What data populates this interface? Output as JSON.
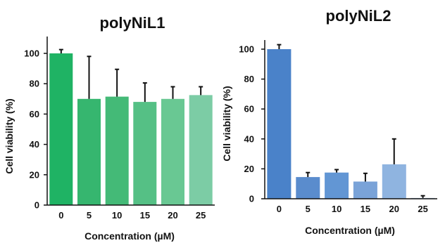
{
  "chart_data": [
    {
      "type": "bar",
      "title": "polyNiL1",
      "xlabel": "Concentration (µM)",
      "ylabel": "Cell viability (%)",
      "categories": [
        "0",
        "5",
        "10",
        "15",
        "20",
        "25"
      ],
      "values": [
        100,
        70,
        71.5,
        68,
        70,
        72.5
      ],
      "errors": [
        2.5,
        28,
        18,
        12.5,
        8,
        5.5
      ],
      "ylim": [
        0,
        100
      ],
      "yticks": [
        "0",
        "20",
        "40",
        "60",
        "80",
        "100"
      ],
      "colors": [
        "#1fb364",
        "#36b66f",
        "#44ba77",
        "#55c085",
        "#69c893",
        "#7ccca5"
      ],
      "grid": false
    },
    {
      "type": "bar",
      "title": "polyNiL2",
      "xlabel": "Concentration (µM)",
      "ylabel": "Cell viability (%)",
      "categories": [
        "0",
        "5",
        "10",
        "15",
        "20",
        "25"
      ],
      "values": [
        100,
        14.5,
        17.5,
        11.5,
        23,
        0.5
      ],
      "errors": [
        3,
        3,
        2,
        5.5,
        17,
        1.5
      ],
      "ylim": [
        0,
        100
      ],
      "yticks": [
        "0",
        "20",
        "40",
        "60",
        "80",
        "100"
      ],
      "colors": [
        "#4a82c9",
        "#5a8ccd",
        "#6296d4",
        "#7aa3d8",
        "#8fb4e0",
        "#a7c4e6"
      ],
      "grid": false
    }
  ]
}
